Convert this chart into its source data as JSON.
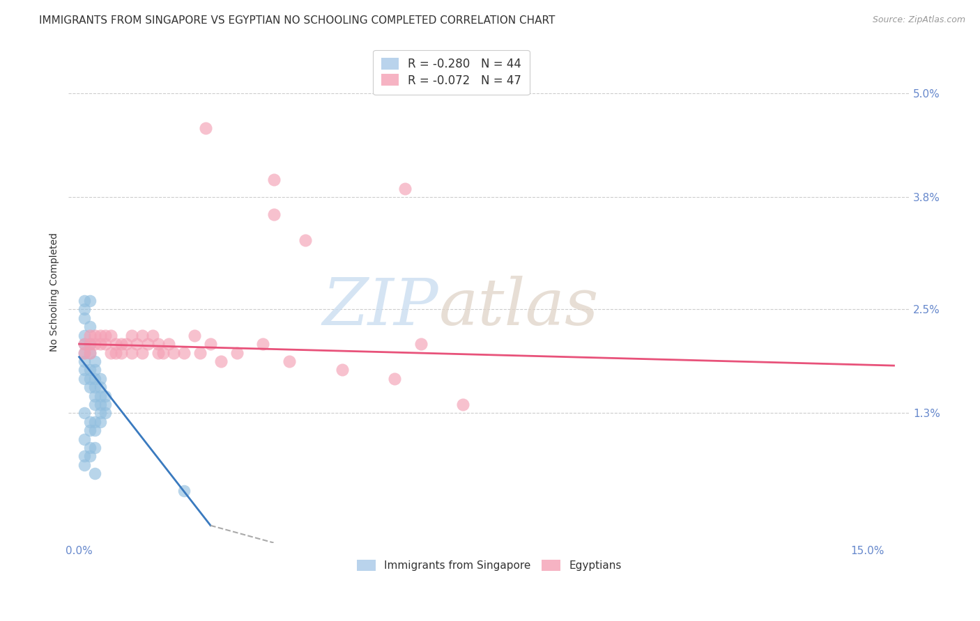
{
  "title": "IMMIGRANTS FROM SINGAPORE VS EGYPTIAN NO SCHOOLING COMPLETED CORRELATION CHART",
  "source": "Source: ZipAtlas.com",
  "ylabel": "No Schooling Completed",
  "y_tick_labels": [
    "5.0%",
    "3.8%",
    "2.5%",
    "1.3%"
  ],
  "y_tick_values": [
    0.05,
    0.038,
    0.025,
    0.013
  ],
  "x_tick_labels": [
    "0.0%",
    "15.0%"
  ],
  "x_tick_values": [
    0.0,
    0.15
  ],
  "xlim": [
    -0.002,
    0.158
  ],
  "ylim": [
    -0.002,
    0.056
  ],
  "legend_entries": [
    {
      "label": "R = -0.280   N = 44",
      "color": "#a8c8e8"
    },
    {
      "label": "R = -0.072   N = 47",
      "color": "#f4a0b5"
    }
  ],
  "legend_label_singapore": "Immigrants from Singapore",
  "legend_label_egyptians": "Egyptians",
  "singapore_color": "#92bfdf",
  "egypt_color": "#f4a0b5",
  "singapore_scatter": [
    [
      0.001,
      0.026
    ],
    [
      0.001,
      0.025
    ],
    [
      0.002,
      0.026
    ],
    [
      0.001,
      0.024
    ],
    [
      0.002,
      0.023
    ],
    [
      0.001,
      0.022
    ],
    [
      0.001,
      0.021
    ],
    [
      0.002,
      0.021
    ],
    [
      0.001,
      0.02
    ],
    [
      0.002,
      0.02
    ],
    [
      0.001,
      0.019
    ],
    [
      0.001,
      0.018
    ],
    [
      0.002,
      0.018
    ],
    [
      0.002,
      0.017
    ],
    [
      0.001,
      0.017
    ],
    [
      0.003,
      0.019
    ],
    [
      0.003,
      0.018
    ],
    [
      0.003,
      0.017
    ],
    [
      0.002,
      0.016
    ],
    [
      0.003,
      0.016
    ],
    [
      0.004,
      0.017
    ],
    [
      0.004,
      0.016
    ],
    [
      0.003,
      0.015
    ],
    [
      0.004,
      0.015
    ],
    [
      0.005,
      0.015
    ],
    [
      0.004,
      0.014
    ],
    [
      0.005,
      0.014
    ],
    [
      0.003,
      0.014
    ],
    [
      0.005,
      0.013
    ],
    [
      0.004,
      0.013
    ],
    [
      0.001,
      0.013
    ],
    [
      0.002,
      0.012
    ],
    [
      0.003,
      0.012
    ],
    [
      0.004,
      0.012
    ],
    [
      0.002,
      0.011
    ],
    [
      0.003,
      0.011
    ],
    [
      0.001,
      0.01
    ],
    [
      0.002,
      0.009
    ],
    [
      0.003,
      0.009
    ],
    [
      0.001,
      0.008
    ],
    [
      0.002,
      0.008
    ],
    [
      0.001,
      0.007
    ],
    [
      0.02,
      0.004
    ],
    [
      0.003,
      0.006
    ]
  ],
  "egypt_scatter": [
    [
      0.001,
      0.021
    ],
    [
      0.001,
      0.02
    ],
    [
      0.002,
      0.022
    ],
    [
      0.002,
      0.021
    ],
    [
      0.003,
      0.022
    ],
    [
      0.003,
      0.021
    ],
    [
      0.002,
      0.02
    ],
    [
      0.004,
      0.022
    ],
    [
      0.004,
      0.021
    ],
    [
      0.005,
      0.022
    ],
    [
      0.005,
      0.021
    ],
    [
      0.006,
      0.022
    ],
    [
      0.006,
      0.02
    ],
    [
      0.007,
      0.021
    ],
    [
      0.007,
      0.02
    ],
    [
      0.008,
      0.021
    ],
    [
      0.008,
      0.02
    ],
    [
      0.009,
      0.021
    ],
    [
      0.01,
      0.022
    ],
    [
      0.01,
      0.02
    ],
    [
      0.011,
      0.021
    ],
    [
      0.012,
      0.022
    ],
    [
      0.012,
      0.02
    ],
    [
      0.013,
      0.021
    ],
    [
      0.014,
      0.022
    ],
    [
      0.015,
      0.02
    ],
    [
      0.015,
      0.021
    ],
    [
      0.016,
      0.02
    ],
    [
      0.017,
      0.021
    ],
    [
      0.018,
      0.02
    ],
    [
      0.02,
      0.02
    ],
    [
      0.022,
      0.022
    ],
    [
      0.023,
      0.02
    ],
    [
      0.025,
      0.021
    ],
    [
      0.027,
      0.019
    ],
    [
      0.03,
      0.02
    ],
    [
      0.035,
      0.021
    ],
    [
      0.04,
      0.019
    ],
    [
      0.05,
      0.018
    ],
    [
      0.06,
      0.017
    ],
    [
      0.065,
      0.021
    ],
    [
      0.024,
      0.046
    ],
    [
      0.037,
      0.04
    ],
    [
      0.037,
      0.036
    ],
    [
      0.043,
      0.033
    ],
    [
      0.062,
      0.039
    ],
    [
      0.073,
      0.014
    ]
  ],
  "singapore_line": {
    "x0": 0.0,
    "y0": 0.0195,
    "x1": 0.025,
    "y1": 0.0
  },
  "egypt_line": {
    "x0": 0.0,
    "y0": 0.021,
    "x1": 0.155,
    "y1": 0.0185
  },
  "sg_dash_line": {
    "x0": 0.025,
    "y0": 0.0,
    "x1": 0.037,
    "y1": -0.002
  },
  "watermark_zip": "ZIP",
  "watermark_atlas": "atlas",
  "title_fontsize": 11,
  "axis_label_fontsize": 10,
  "tick_fontsize": 11,
  "legend_fontsize": 12,
  "grid_color": "#cccccc",
  "tick_color": "#6688cc",
  "background_color": "#ffffff"
}
